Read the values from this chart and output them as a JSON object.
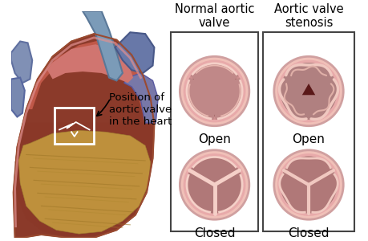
{
  "bg_color": "#ffffff",
  "box_border": "#555555",
  "title1": "Normal aortic\nvalve",
  "title2": "Aortic valve\nstenosis",
  "label_open": "Open",
  "label_closed": "Closed",
  "label_position": "Position of\naortic valve\nin the heart",
  "title_fontsize": 10.5,
  "label_fontsize": 11,
  "ring_outer": "#f0c0b8",
  "ring_mid": "#e8aaaa",
  "ring_inner_bg": "#d09090",
  "lumen_dark": "#5a1818",
  "cusp_fill": "#c08888",
  "cusp_fill2": "#b07878",
  "cusp_line": "#f5d0c8",
  "sten_bg": "#bb8888",
  "sten_cusp": "#a87070",
  "sten_line": "#f0c8c0",
  "closed_bg": "#c09090",
  "closed_cusp": "#b07878",
  "closed_line": "#f0c8c0",
  "sten_closed_bg": "#b08080",
  "sten_closed_cusp": "#a07070"
}
